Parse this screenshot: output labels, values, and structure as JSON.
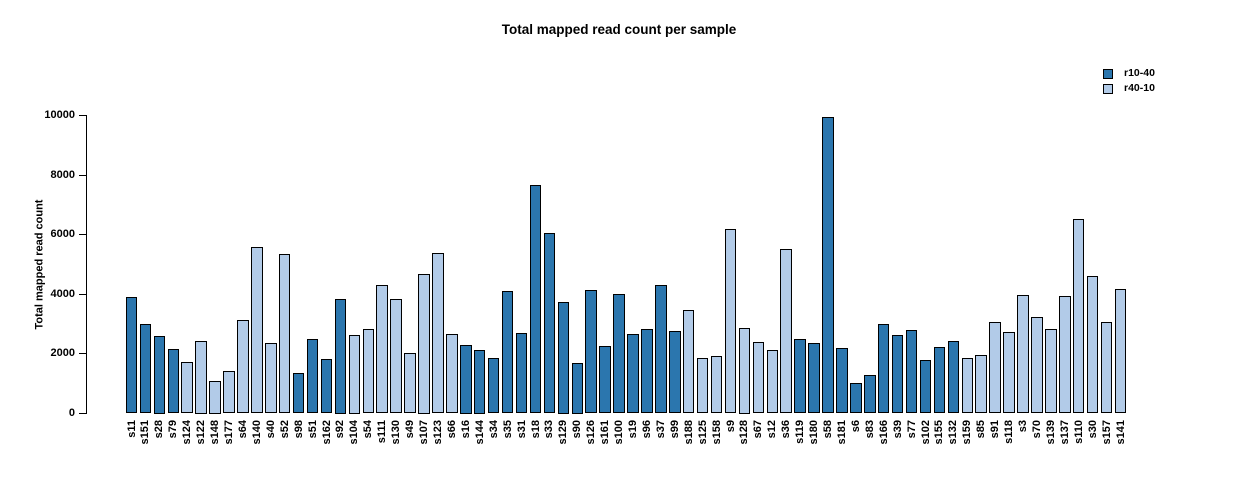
{
  "chart_data": {
    "type": "bar",
    "title": "Total mapped read count per sample",
    "xlabel": "",
    "ylabel": "Total mapped read count",
    "ylim": [
      0,
      10000
    ],
    "yticks": [
      0,
      2000,
      4000,
      6000,
      8000,
      10000
    ],
    "grid": false,
    "legend_position": "top-right",
    "series": [
      {
        "name": "r10-40",
        "color": "#2b76ae"
      },
      {
        "name": "r40-10",
        "color": "#b2cbe8"
      }
    ],
    "categories": [
      "s11",
      "s151",
      "s28",
      "s79",
      "s124",
      "s122",
      "s148",
      "s177",
      "s64",
      "s140",
      "s40",
      "s52",
      "s98",
      "s51",
      "s162",
      "s92",
      "s104",
      "s54",
      "s111",
      "s130",
      "s49",
      "s107",
      "s123",
      "s66",
      "s16",
      "s144",
      "s34",
      "s35",
      "s31",
      "s18",
      "s33",
      "s129",
      "s90",
      "s126",
      "s161",
      "s100",
      "s19",
      "s96",
      "s37",
      "s99",
      "s188",
      "s125",
      "s158",
      "s9",
      "s128",
      "s67",
      "s12",
      "s36",
      "s119",
      "s180",
      "s58",
      "s181",
      "s6",
      "s83",
      "s166",
      "s39",
      "s77",
      "s102",
      "s155",
      "s132",
      "s159",
      "s85",
      "s91",
      "s118",
      "s3",
      "s70",
      "s139",
      "s137",
      "s110",
      "s30",
      "s157",
      "s141"
    ],
    "values": [
      3900,
      2990,
      2600,
      2150,
      1720,
      2450,
      1090,
      1440,
      3140,
      5600,
      2360,
      5340,
      1370,
      2490,
      1820,
      3860,
      2650,
      2840,
      4310,
      3830,
      2020,
      4680,
      5400,
      2660,
      2300,
      2130,
      1870,
      4100,
      2690,
      7680,
      6060,
      3750,
      1710,
      4130,
      2280,
      4000,
      2660,
      2850,
      4310,
      2780,
      3470,
      1850,
      1940,
      6180,
      2870,
      2390,
      2120,
      5510,
      2510,
      2360,
      9960,
      2190,
      1010,
      1290,
      3000,
      2620,
      2810,
      1800,
      2220,
      2430,
      1860,
      1950,
      3080,
      2740,
      3980,
      3250,
      2840,
      3930,
      6530,
      4620,
      3060,
      4190
    ],
    "bar_group": [
      0,
      0,
      0,
      0,
      1,
      1,
      1,
      1,
      1,
      1,
      1,
      1,
      0,
      0,
      0,
      0,
      1,
      1,
      1,
      1,
      1,
      1,
      1,
      1,
      0,
      0,
      0,
      0,
      0,
      0,
      0,
      0,
      0,
      0,
      0,
      0,
      0,
      0,
      0,
      0,
      1,
      1,
      1,
      1,
      1,
      1,
      1,
      1,
      0,
      0,
      0,
      0,
      0,
      0,
      0,
      0,
      0,
      0,
      0,
      0,
      1,
      1,
      1,
      1,
      1,
      1,
      1,
      1,
      1,
      1,
      1,
      1
    ]
  },
  "legend": {
    "items": [
      {
        "label": "r10-40",
        "color": "#2b76ae"
      },
      {
        "label": "r40-10",
        "color": "#b2cbe8"
      }
    ]
  }
}
